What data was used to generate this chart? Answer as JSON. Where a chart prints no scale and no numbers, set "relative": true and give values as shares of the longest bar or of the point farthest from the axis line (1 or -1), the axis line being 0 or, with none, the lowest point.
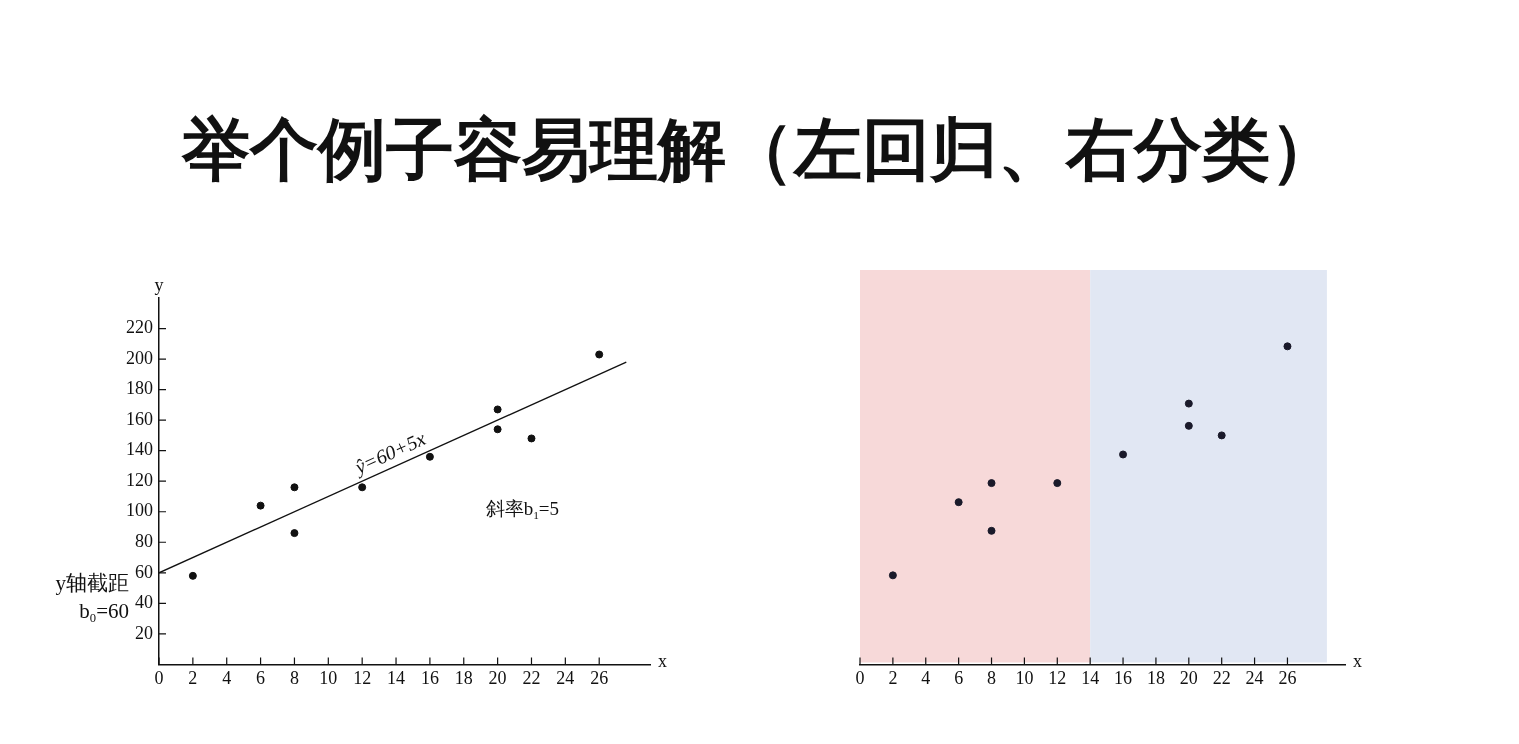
{
  "chart_data": [
    {
      "type": "scatter",
      "title": "举个例子容易理解（左回归、右分类）",
      "xlabel": "x",
      "ylabel": "y",
      "grid": false,
      "xlim": [
        0,
        29
      ],
      "xticks": [
        0,
        2,
        4,
        6,
        8,
        10,
        12,
        14,
        16,
        18,
        20,
        22,
        24,
        26
      ],
      "ylim": [
        0,
        240
      ],
      "yticks": [
        20,
        40,
        60,
        80,
        100,
        120,
        140,
        160,
        180,
        200,
        220
      ],
      "series": [
        {
          "marker": "circle",
          "color": "#111111",
          "x": [
            2,
            6,
            8,
            8,
            12,
            16,
            20,
            20,
            22,
            26
          ],
          "values": [
            58,
            104,
            116,
            86,
            116,
            136,
            167,
            154,
            148,
            203
          ]
        },
        {
          "type": "line",
          "color": "#111111",
          "x": [
            0,
            27.6
          ],
          "values": [
            60,
            198
          ]
        }
      ],
      "annotations": [
        {
          "text": "ŷ=60+5x",
          "x": 12,
          "y": 120
        },
        {
          "text": "y轴截距 b$_{0}$=60",
          "x": 0,
          "y": 60
        },
        "斜率b$_{1}$=5"
      ]
    },
    {
      "type": "scatter",
      "xlabel": "x",
      "relative": true,
      "tick_labels": "x",
      "marker": "circle",
      "grid": false,
      "xlim": [
        0,
        29.5
      ],
      "xticks": [
        0,
        2,
        4,
        6,
        8,
        10,
        12,
        14,
        16,
        18,
        20,
        22,
        24,
        26
      ],
      "x": [
        2,
        6,
        8,
        8,
        12,
        16,
        20,
        20,
        22,
        26
      ],
      "values": [
        0.28,
        0.51,
        0.57,
        0.42,
        0.57,
        0.66,
        0.82,
        0.75,
        0.72,
        1
      ],
      "color": "#1a1a2a",
      "bands": [
        {
          "axis": "x",
          "from": 0,
          "to": 14,
          "color": "#f7d9d9"
        },
        {
          "axis": "x",
          "from": 14,
          "to": 28.4,
          "color": "#e1e7f3"
        }
      ]
    }
  ]
}
